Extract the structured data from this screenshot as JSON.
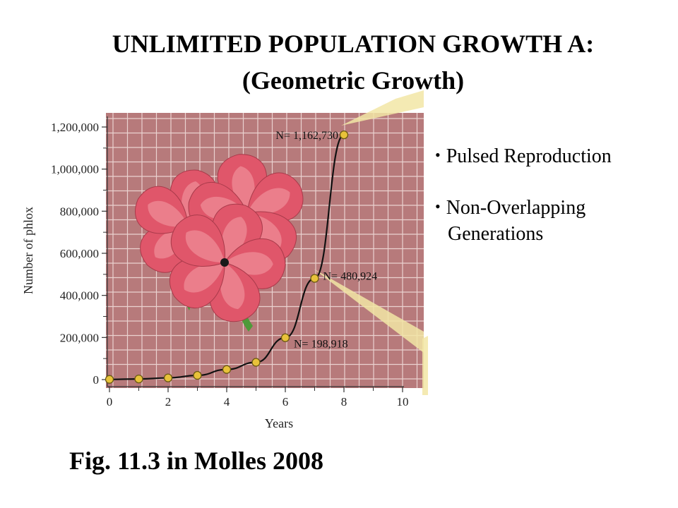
{
  "slide": {
    "title_line1": "UNLIMITED POPULATION GROWTH A:",
    "title_line2": "(Geometric  Growth)",
    "bullets": [
      {
        "line1": "Pulsed Reproduction",
        "line2": ""
      },
      {
        "line1": "Non-Overlapping",
        "line2": "Generations"
      }
    ],
    "caption": "Fig. 11.3 in Molles 2008"
  },
  "colors": {
    "plot_background": "#b77a7b",
    "grid": "#ead2cf",
    "curve": "#111111",
    "point_fill": "#e8c23a",
    "point_stroke": "#6b5a12",
    "beam": "#f2e6a6",
    "flower_petal": "#e0566a",
    "flower_petal_light": "#f29aa2",
    "leaf": "#4e9a3a"
  },
  "chart_data": {
    "type": "line",
    "title": "",
    "xlabel": "Years",
    "ylabel": "Number of phlox",
    "xlim": [
      0,
      10
    ],
    "ylim": [
      0,
      1200000
    ],
    "grid": true,
    "x_ticks": [
      0,
      2,
      4,
      6,
      8,
      10
    ],
    "y_ticks": [
      {
        "value": 0,
        "label": "0"
      },
      {
        "value": 200000,
        "label": "200,000"
      },
      {
        "value": 400000,
        "label": "400,000"
      },
      {
        "value": 600000,
        "label": "600,000"
      },
      {
        "value": 800000,
        "label": "800,000"
      },
      {
        "value": 1000000,
        "label": "1,000,000"
      },
      {
        "value": 1200000,
        "label": "1,200,000"
      }
    ],
    "series": [
      {
        "x": [
          0,
          1,
          2,
          3,
          4,
          5,
          6,
          7,
          8
        ],
        "y": [
          1000,
          3000,
          8000,
          20000,
          48000,
          82000,
          198918,
          480924,
          1162730
        ]
      }
    ],
    "annotations": [
      {
        "x": 8,
        "y": 1162730,
        "label": "N= 1,162,730"
      },
      {
        "x": 7,
        "y": 480924,
        "label": "N= 480,924"
      },
      {
        "x": 6,
        "y": 198918,
        "label": "N= 198,918"
      }
    ]
  }
}
